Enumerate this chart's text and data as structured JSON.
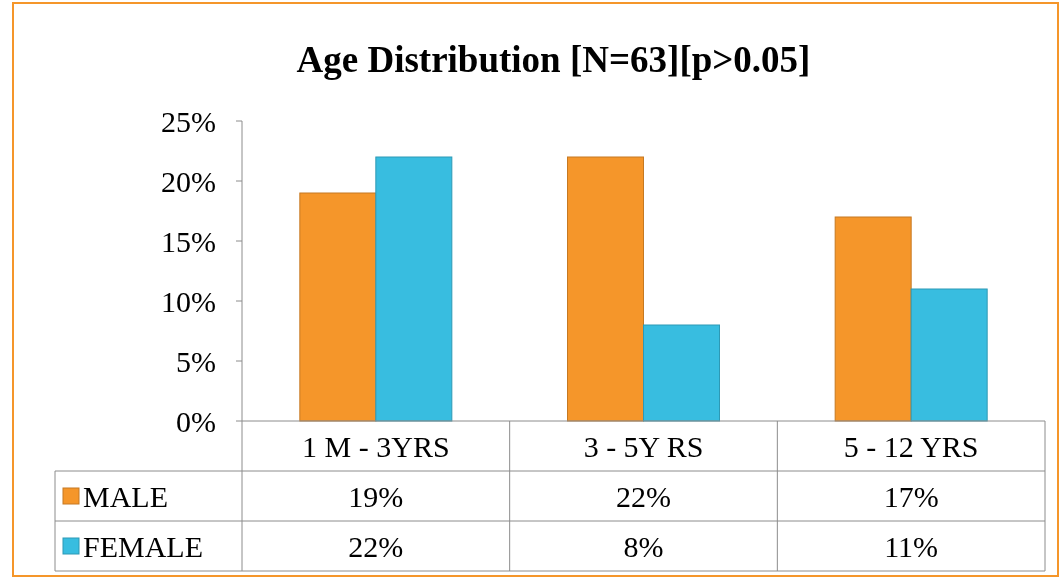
{
  "chart_data": {
    "type": "bar",
    "title": "Age Distribution [N=63][p>0.05]",
    "categories": [
      "1 M - 3YRS",
      "3 - 5Y RS",
      "5 - 12 YRS"
    ],
    "series": [
      {
        "name": "MALE",
        "color": "#f5962a",
        "values": [
          19,
          22,
          17
        ],
        "value_labels": [
          "19%",
          "22%",
          "17%"
        ]
      },
      {
        "name": "FEMALE",
        "color": "#38bde0",
        "values": [
          22,
          8,
          11
        ],
        "value_labels": [
          "22%",
          "8%",
          "11%"
        ]
      }
    ],
    "ylim": [
      0,
      25
    ],
    "yticks": [
      {
        "value": 0,
        "label": "0%"
      },
      {
        "value": 5,
        "label": "5%"
      },
      {
        "value": 10,
        "label": "10%"
      },
      {
        "value": 15,
        "label": "15%"
      },
      {
        "value": 20,
        "label": "20%"
      },
      {
        "value": 25,
        "label": "25%"
      }
    ],
    "legend": "bottom"
  }
}
